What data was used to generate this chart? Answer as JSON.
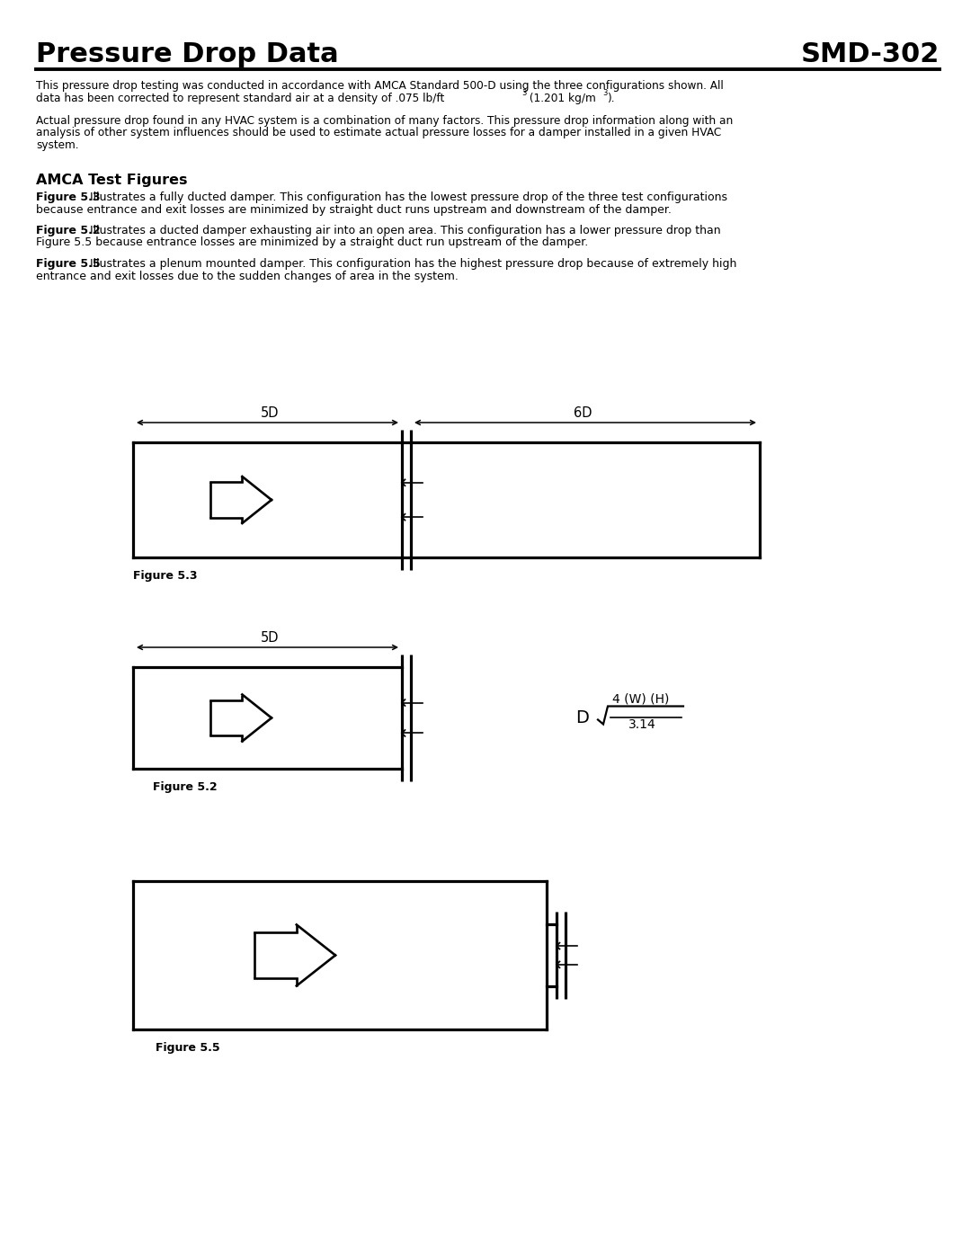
{
  "title_left": "Pressure Drop Data",
  "title_right": "SMD-302",
  "para1_line1": "This pressure drop testing was conducted in accordance with AMCA Standard 500-D using the three configurations shown. All",
  "para1_line2": "data has been corrected to represent standard air at a density of .075 lb/ft",
  "para1_sup1": "3",
  "para1_mid": " (1.201 kg/m",
  "para1_sup2": "3",
  "para1_end": ").",
  "para2_line1": "Actual pressure drop found in any HVAC system is a combination of many factors. This pressure drop information along with an",
  "para2_line2": "analysis of other system influences should be used to estimate actual pressure losses for a damper installed in a given HVAC",
  "para2_line3": "system.",
  "section_title": "AMCA Test Figures",
  "fig53_bold": "Figure 5.3",
  "fig53_rest": " Illustrates a fully ducted damper. This configuration has the lowest pressure drop of the three test configurations",
  "fig53_line2": "because entrance and exit losses are minimized by straight duct runs upstream and downstream of the damper.",
  "fig52_bold": "Figure 5.2",
  "fig52_rest": " Illustrates a ducted damper exhausting air into an open area. This configuration has a lower pressure drop than",
  "fig52_line2": "Figure 5.5 because entrance losses are minimized by a straight duct run upstream of the damper.",
  "fig55_bold": "Figure 5.5",
  "fig55_rest": " Illustrates a plenum mounted damper. This configuration has the highest pressure drop because of extremely high",
  "fig55_line2": "entrance and exit losses due to the sudden changes of area in the system.",
  "fig53_label": "Figure 5.3",
  "fig52_label": "Figure 5.2",
  "fig55_label": "Figure 5.5",
  "dim_5D": "5D",
  "dim_6D": "6D",
  "eq_D": "D",
  "eq_num": "4 (W) (H)",
  "eq_den": "3.14",
  "background_color": "#ffffff"
}
